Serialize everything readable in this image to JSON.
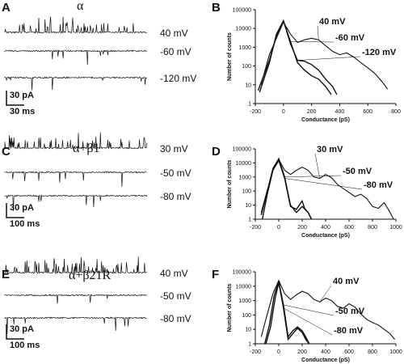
{
  "colors": {
    "ink": "#111111",
    "background": "#ffffff"
  },
  "panels": [
    {
      "letter": "A",
      "title": "α",
      "traces": [
        {
          "voltage": "40 mV",
          "style": "high"
        },
        {
          "voltage": "-60 mV",
          "style": "low"
        },
        {
          "voltage": "-120 mV",
          "style": "low"
        }
      ],
      "scale_current": "30 pA",
      "scale_time": "30 ms"
    },
    {
      "letter": "C",
      "title": "α+β1",
      "traces": [
        {
          "voltage": "30 mV",
          "style": "high"
        },
        {
          "voltage": "-50 mV",
          "style": "low"
        },
        {
          "voltage": "-80 mV",
          "style": "low"
        }
      ],
      "scale_current": "30 pA",
      "scale_time": "100 ms"
    },
    {
      "letter": "E",
      "title": "α+β21R",
      "traces": [
        {
          "voltage": "40 mV",
          "style": "high"
        },
        {
          "voltage": "-50 mV",
          "style": "low"
        },
        {
          "voltage": "-80 mV",
          "style": "low"
        }
      ],
      "scale_current": "30 pA",
      "scale_time": "100 ms"
    }
  ],
  "chart_data": [
    {
      "panel": "B",
      "type": "line",
      "xlabel": "Conductance (pS)",
      "ylabel": "Number of counts",
      "xlim": [
        -200,
        800
      ],
      "xticks": [
        "-200",
        "0",
        "200",
        "400",
        "600",
        "800"
      ],
      "ylim": [
        1,
        100000
      ],
      "yscale": "log",
      "yticks": [
        "1",
        "10",
        "100",
        "1000",
        "10000",
        "100000"
      ],
      "series": [
        {
          "name": "40 mV",
          "x": [
            -160,
            -100,
            -50,
            0,
            50,
            100,
            150,
            200,
            250,
            300,
            350,
            400,
            450,
            500,
            550,
            600,
            650,
            700,
            740
          ],
          "y": [
            10,
            400,
            3000,
            22000,
            5000,
            1800,
            2500,
            3000,
            2500,
            1200,
            600,
            400,
            500,
            300,
            150,
            80,
            40,
            15,
            6
          ]
        },
        {
          "name": "-60 mV",
          "x": [
            -180,
            -100,
            -50,
            0,
            50,
            100,
            150,
            200,
            250,
            300,
            340
          ],
          "y": [
            5,
            200,
            4000,
            25000,
            2000,
            150,
            60,
            30,
            20,
            8,
            3
          ]
        },
        {
          "name": "-120 mV",
          "x": [
            -170,
            -100,
            -50,
            0,
            50,
            100,
            150,
            200,
            250,
            300,
            350,
            380
          ],
          "y": [
            4,
            150,
            5000,
            26000,
            1500,
            200,
            180,
            120,
            60,
            20,
            8,
            3
          ]
        }
      ]
    },
    {
      "panel": "D",
      "type": "line",
      "xlabel": "Conductance (pS)",
      "ylabel": "Number of counts",
      "xlim": [
        -200,
        1000
      ],
      "xticks": [
        "-200",
        "0",
        "200",
        "400",
        "600",
        "800",
        "1000"
      ],
      "ylim": [
        1,
        100000
      ],
      "yscale": "log",
      "yticks": [
        "1",
        "10",
        "100",
        "1000",
        "10000",
        "100000"
      ],
      "series": [
        {
          "name": "30 mV",
          "x": [
            -150,
            -100,
            -50,
            0,
            50,
            100,
            150,
            200,
            250,
            300,
            350,
            400,
            450,
            500,
            550,
            600,
            650,
            700,
            750,
            800,
            850,
            900,
            950,
            980
          ],
          "y": [
            3,
            100,
            3000,
            18000,
            3000,
            1500,
            3000,
            5000,
            3000,
            1000,
            800,
            1500,
            900,
            300,
            150,
            80,
            40,
            60,
            30,
            8,
            6,
            15,
            3,
            1
          ]
        },
        {
          "name": "-50 mV",
          "x": [
            -150,
            -100,
            -50,
            0,
            50,
            100,
            150,
            200,
            250,
            280
          ],
          "y": [
            2,
            80,
            4000,
            20000,
            1000,
            10,
            3,
            8,
            3,
            1
          ]
        },
        {
          "name": "-80 mV",
          "x": [
            -140,
            -100,
            -50,
            0,
            50,
            100,
            150,
            200,
            220,
            250,
            280
          ],
          "y": [
            1,
            50,
            3000,
            15000,
            800,
            8,
            5,
            20,
            6,
            3,
            1
          ]
        }
      ]
    },
    {
      "panel": "F",
      "type": "line",
      "xlabel": "Conductance (pS)",
      "ylabel": "Number of counts",
      "xlim": [
        -200,
        1000
      ],
      "xticks": [
        "-200",
        "0",
        "200",
        "400",
        "600",
        "800",
        "1000"
      ],
      "ylim": [
        1,
        100000
      ],
      "yscale": "log",
      "yticks": [
        "1",
        "10",
        "100",
        "1000",
        "10000",
        "100000"
      ],
      "series": [
        {
          "name": "40 mV",
          "x": [
            -150,
            -100,
            -50,
            0,
            50,
            100,
            150,
            200,
            250,
            300,
            350,
            400,
            450,
            500,
            550,
            600,
            650,
            700,
            750,
            800,
            850,
            900,
            950,
            990
          ],
          "y": [
            3,
            100,
            3000,
            25000,
            3000,
            1200,
            2500,
            4500,
            3000,
            1200,
            800,
            1500,
            1000,
            400,
            300,
            600,
            350,
            120,
            50,
            30,
            20,
            10,
            5,
            2
          ]
        },
        {
          "name": "-50 mV",
          "x": [
            -120,
            -80,
            -40,
            0,
            40,
            80,
            120,
            160,
            200,
            230,
            260
          ],
          "y": [
            1,
            20,
            2000,
            22000,
            500,
            3,
            8,
            15,
            8,
            3,
            1
          ]
        },
        {
          "name": "-80 mV",
          "x": [
            -110,
            -70,
            -30,
            0,
            40,
            80,
            120,
            160,
            200,
            230,
            260
          ],
          "y": [
            1,
            15,
            1500,
            18000,
            300,
            2,
            5,
            12,
            6,
            2,
            1
          ]
        }
      ]
    }
  ]
}
